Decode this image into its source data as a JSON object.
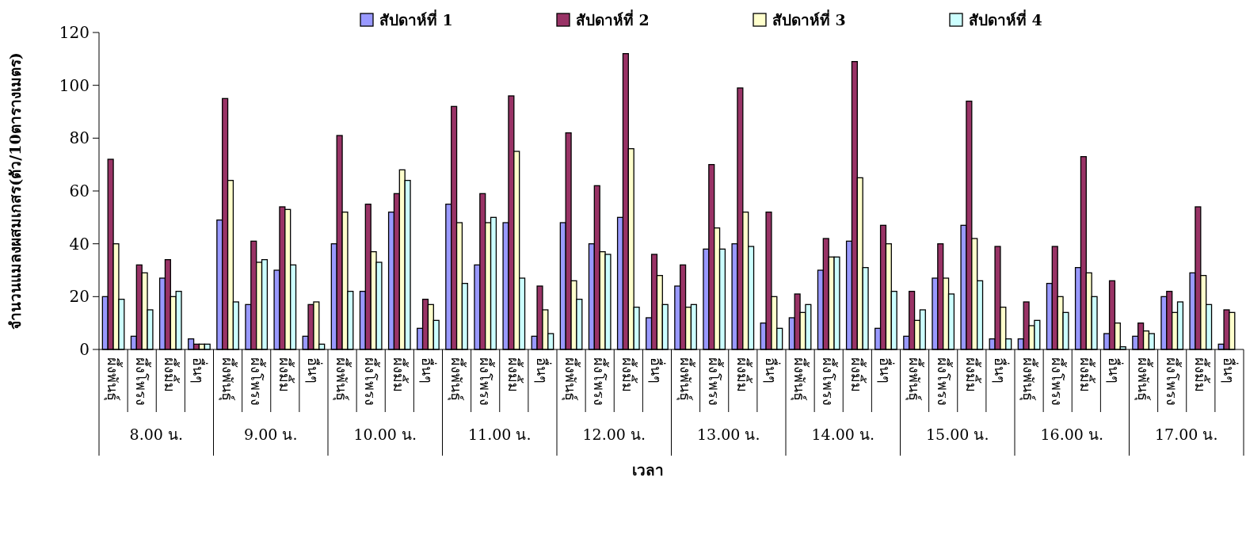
{
  "chart_data": {
    "type": "bar",
    "xlabel": "เวลา",
    "ylabel": "จำนวนแมลงผสมเกสร(ตัว/10ตารางเมตร)",
    "categories": [
      "ผึ้งพันธุ์",
      "ผึ้งโพรง",
      "ผึ้งมิ้ม",
      "อื่นๆ",
      "ผึ้งพันธุ์",
      "ผึ้งโพรง",
      "ผึ้งมิ้ม",
      "อื่นๆ",
      "ผึ้งพันธุ์",
      "ผึ้งโพรง",
      "ผึ้งมิ้ม",
      "อื่นๆ",
      "ผึ้งพันธุ์",
      "ผึ้งโพรง",
      "ผึ้งมิ้ม",
      "อื่นๆ",
      "ผึ้งพันธุ์",
      "ผึ้งโพรง",
      "ผึ้งมิ้ม",
      "อื่นๆ",
      "ผึ้งพันธุ์",
      "ผึ้งโพรง",
      "ผึ้งมิ้ม",
      "อื่นๆ",
      "ผึ้งพันธุ์",
      "ผึ้งโพรง",
      "ผึ้งมิ้ม",
      "อื่นๆ",
      "ผึ้งพันธุ์",
      "ผึ้งโพรง",
      "ผึ้งมิ้ม",
      "อื่นๆ",
      "ผึ้งพันธุ์",
      "ผึ้งโพรง",
      "ผึ้งมิ้ม",
      "อื่นๆ",
      "ผึ้งพันธุ์",
      "ผึ้งโพรง",
      "ผึ้งมิ้ม",
      "อื่นๆ"
    ],
    "annotations": [
      "8.00 น.",
      "9.00 น.",
      "10.00 น.",
      "11.00 น.",
      "12.00 น.",
      "13.00 น.",
      "14.00 น.",
      "15.00 น.",
      "16.00 น.",
      "17.00 น."
    ],
    "series": [
      {
        "name": "สัปดาห์ที่ 1",
        "color": "#9999ff",
        "values": [
          20,
          5,
          27,
          4,
          49,
          17,
          30,
          5,
          40,
          22,
          52,
          8,
          55,
          32,
          48,
          5,
          48,
          40,
          50,
          12,
          24,
          38,
          40,
          10,
          12,
          30,
          41,
          8,
          5,
          27,
          47,
          4,
          4,
          25,
          31,
          6,
          5,
          20,
          29,
          2
        ]
      },
      {
        "name": "สัปดาห์ที่ 2",
        "color": "#993366",
        "values": [
          72,
          32,
          34,
          2,
          95,
          41,
          54,
          17,
          81,
          55,
          59,
          19,
          92,
          59,
          96,
          24,
          82,
          62,
          112,
          36,
          32,
          70,
          99,
          52,
          21,
          42,
          109,
          47,
          22,
          40,
          94,
          39,
          18,
          39,
          73,
          26,
          10,
          22,
          54,
          15
        ]
      },
      {
        "name": "สัปดาห์ที่ 3",
        "color": "#ffffcc",
        "values": [
          40,
          29,
          20,
          2,
          64,
          33,
          53,
          18,
          52,
          37,
          68,
          17,
          48,
          48,
          75,
          15,
          26,
          37,
          76,
          28,
          16,
          46,
          52,
          20,
          14,
          35,
          65,
          40,
          11,
          27,
          42,
          16,
          9,
          20,
          29,
          10,
          7,
          14,
          28,
          14
        ]
      },
      {
        "name": "สัปดาห์ที่ 4",
        "color": "#ccffff",
        "values": [
          19,
          15,
          22,
          2,
          18,
          34,
          32,
          2,
          22,
          33,
          64,
          11,
          25,
          50,
          27,
          6,
          19,
          36,
          16,
          17,
          17,
          38,
          39,
          8,
          17,
          35,
          31,
          22,
          15,
          21,
          26,
          4,
          11,
          14,
          20,
          1,
          6,
          18,
          17,
          null
        ]
      }
    ],
    "ylim": [
      0,
      120
    ],
    "yticks": [
      0,
      20,
      40,
      60,
      80,
      100,
      120
    ],
    "legend": "top"
  }
}
